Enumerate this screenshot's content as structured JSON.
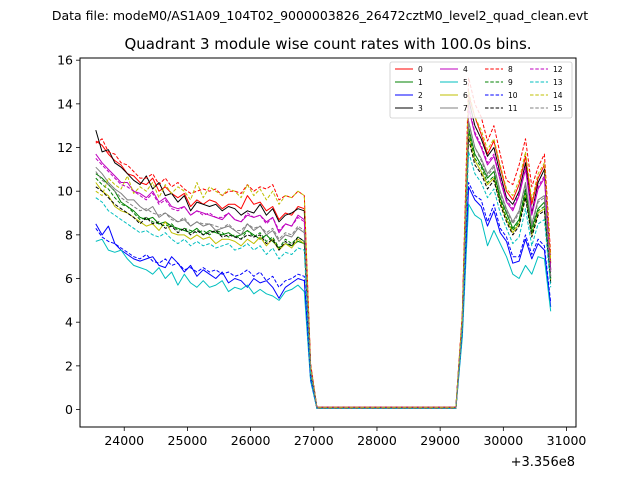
{
  "suptitle": "Data file: modeM0/AS1A09_104T02_9000003826_26472cztM0_level2_quad_clean.evt",
  "chart_data": {
    "type": "line",
    "title": "Quadrant 3 module wise count rates with 100.0s bins.",
    "xlabel": "",
    "ylabel": "",
    "x_offset_label": "+3.356e8",
    "xlim": [
      23300,
      31150
    ],
    "ylim": [
      -0.8,
      16.1
    ],
    "xticks": [
      24000,
      25000,
      26000,
      27000,
      28000,
      29000,
      30000,
      31000
    ],
    "yticks": [
      0,
      2,
      4,
      6,
      8,
      10,
      12,
      14,
      16
    ],
    "legend_position": "top-right",
    "note": "Values are approximate readings of a noisy plot; x values are offsets from 3.356e8 s.",
    "segment1_x": [
      23550,
      23650,
      23750,
      23850,
      23950,
      24050,
      24150,
      24250,
      24350,
      24450,
      24550,
      24650,
      24750,
      24850,
      24950,
      25050,
      25150,
      25250,
      25350,
      25450,
      25550,
      25650,
      25750,
      25850,
      25950,
      26050,
      26150,
      26250,
      26350,
      26450,
      26550,
      26650,
      26750,
      26850,
      26950,
      27050
    ],
    "gap_x": [
      27050,
      29250
    ],
    "segment2_x": [
      29250,
      29350,
      29450,
      29550,
      29650,
      29750,
      29850,
      29950,
      30050,
      30150,
      30250,
      30350,
      30450,
      30550,
      30650,
      30750
    ],
    "series": [
      {
        "name": "0",
        "color": "#ff0000",
        "style": "solid",
        "values1": [
          12.3,
          12.1,
          11.7,
          11.4,
          11.2,
          10.8,
          10.7,
          10.4,
          10.3,
          10.6,
          10.0,
          10.2,
          9.9,
          9.7,
          9.9,
          9.3,
          9.6,
          9.4,
          9.6,
          9.5,
          9.2,
          9.4,
          9.4,
          9.2,
          9.8,
          9.4,
          9.5,
          9.1,
          9.3,
          8.7,
          9.0,
          8.9,
          9.3,
          9.2,
          2.0,
          0.1
        ],
        "values2": [
          0.1,
          4.3,
          14.4,
          13.4,
          12.6,
          11.7,
          12.3,
          11.1,
          10.0,
          9.6,
          10.3,
          11.6,
          9.4,
          10.6,
          11.2,
          6.7
        ]
      },
      {
        "name": "1",
        "color": "#008000",
        "style": "solid",
        "values1": [
          10.8,
          10.6,
          10.3,
          10.0,
          9.5,
          9.3,
          9.1,
          8.8,
          8.7,
          8.8,
          8.5,
          8.6,
          8.4,
          8.3,
          8.2,
          8.1,
          8.3,
          8.0,
          8.2,
          8.1,
          8.0,
          8.1,
          7.9,
          8.0,
          8.2,
          8.0,
          7.8,
          8.0,
          7.7,
          7.4,
          7.6,
          7.5,
          7.7,
          7.6,
          1.8,
          0.05
        ],
        "values2": [
          0.05,
          4.0,
          12.9,
          11.7,
          11.2,
          10.6,
          10.9,
          9.7,
          9.0,
          8.3,
          8.7,
          10.1,
          8.3,
          9.2,
          9.5,
          6.0
        ]
      },
      {
        "name": "2",
        "color": "#0000ff",
        "style": "solid",
        "values1": [
          8.5,
          8.0,
          8.4,
          7.6,
          7.3,
          7.1,
          6.9,
          6.8,
          6.9,
          7.0,
          6.6,
          6.5,
          7.0,
          6.7,
          6.3,
          6.6,
          6.1,
          6.4,
          6.2,
          6.0,
          6.3,
          5.8,
          6.0,
          5.9,
          5.6,
          6.0,
          5.8,
          5.9,
          5.6,
          5.1,
          5.6,
          5.8,
          6.0,
          5.9,
          1.4,
          0.05
        ],
        "values2": [
          0.05,
          3.5,
          10.2,
          9.6,
          9.3,
          8.4,
          9.1,
          8.1,
          7.7,
          6.7,
          6.8,
          7.8,
          6.9,
          7.6,
          7.3,
          4.7
        ]
      },
      {
        "name": "3",
        "color": "#000000",
        "style": "solid",
        "values1": [
          12.8,
          11.8,
          11.9,
          11.3,
          11.1,
          10.8,
          10.5,
          10.3,
          10.7,
          10.1,
          10.4,
          9.8,
          9.9,
          9.5,
          9.8,
          9.1,
          9.5,
          9.4,
          9.3,
          9.4,
          9.1,
          9.3,
          9.2,
          8.9,
          9.1,
          9.0,
          9.4,
          8.9,
          9.2,
          8.6,
          8.9,
          9.0,
          9.2,
          9.1,
          2.0,
          0.1
        ],
        "values2": [
          0.1,
          4.2,
          14.2,
          13.0,
          12.4,
          11.6,
          12.0,
          10.8,
          9.7,
          9.4,
          10.0,
          11.3,
          9.0,
          10.4,
          11.0,
          6.4
        ]
      },
      {
        "name": "4",
        "color": "#bf00bf",
        "style": "solid",
        "values1": [
          11.7,
          11.3,
          11.0,
          10.7,
          10.4,
          10.4,
          10.0,
          9.9,
          9.7,
          10.0,
          9.5,
          9.7,
          9.3,
          9.2,
          9.3,
          8.9,
          9.1,
          9.0,
          8.9,
          8.8,
          8.7,
          9.0,
          8.7,
          8.6,
          8.9,
          8.8,
          8.9,
          8.6,
          8.8,
          8.1,
          8.5,
          8.4,
          8.9,
          8.7,
          1.9,
          0.1
        ],
        "values2": [
          0.1,
          4.1,
          13.8,
          12.6,
          12.0,
          11.2,
          11.6,
          10.5,
          9.5,
          9.1,
          9.8,
          11.0,
          8.9,
          10.1,
          10.6,
          6.3
        ]
      },
      {
        "name": "5",
        "color": "#00bfbf",
        "style": "solid",
        "values1": [
          7.7,
          7.8,
          7.3,
          7.2,
          7.3,
          6.9,
          6.6,
          6.5,
          6.4,
          6.2,
          6.5,
          6.0,
          6.3,
          5.7,
          6.2,
          5.8,
          5.6,
          5.9,
          5.6,
          5.7,
          5.9,
          5.4,
          5.6,
          5.5,
          5.7,
          5.3,
          5.5,
          5.3,
          5.2,
          5.0,
          5.4,
          5.5,
          5.7,
          5.4,
          1.3,
          0.05
        ],
        "values2": [
          0.05,
          3.3,
          9.4,
          8.9,
          8.7,
          7.5,
          8.2,
          7.6,
          7.0,
          6.2,
          6.0,
          6.6,
          6.2,
          7.0,
          6.9,
          4.5
        ]
      },
      {
        "name": "6",
        "color": "#bfbf00",
        "style": "solid",
        "values1": [
          10.4,
          10.0,
          9.8,
          9.3,
          9.1,
          9.0,
          8.8,
          8.6,
          8.4,
          8.5,
          8.2,
          8.6,
          8.1,
          8.0,
          8.0,
          7.8,
          8.0,
          7.8,
          7.9,
          7.6,
          7.8,
          7.8,
          7.7,
          7.5,
          7.8,
          7.6,
          7.9,
          7.5,
          7.8,
          7.3,
          7.6,
          7.4,
          7.8,
          7.6,
          1.7,
          0.05
        ],
        "values2": [
          0.05,
          3.9,
          12.6,
          11.4,
          10.9,
          10.3,
          10.6,
          9.5,
          8.7,
          8.1,
          8.5,
          9.8,
          8.0,
          9.0,
          9.2,
          5.9
        ]
      },
      {
        "name": "7",
        "color": "#808080",
        "style": "solid",
        "values1": [
          11.1,
          10.8,
          10.4,
          10.1,
          9.9,
          9.6,
          9.6,
          9.3,
          9.1,
          9.3,
          8.8,
          9.0,
          8.8,
          8.6,
          8.7,
          8.4,
          8.6,
          8.4,
          8.5,
          8.2,
          8.3,
          8.4,
          8.2,
          8.0,
          8.5,
          8.2,
          8.4,
          8.0,
          8.2,
          7.7,
          8.0,
          7.9,
          8.3,
          8.1,
          1.8,
          0.05
        ],
        "values2": [
          0.05,
          4.0,
          13.2,
          12.0,
          11.5,
          10.8,
          11.2,
          10.0,
          9.2,
          8.6,
          9.1,
          10.4,
          8.5,
          9.6,
          9.8,
          6.1
        ]
      },
      {
        "name": "8",
        "color": "#ff0000",
        "style": "dashed",
        "values1": [
          12.2,
          12.4,
          11.8,
          11.7,
          11.3,
          11.2,
          10.9,
          10.6,
          10.6,
          10.8,
          10.3,
          10.6,
          10.2,
          10.4,
          10.1,
          9.9,
          10.0,
          10.1,
          10.0,
          10.1,
          9.8,
          10.0,
          10.0,
          9.9,
          10.3,
          10.0,
          10.2,
          10.1,
          10.3,
          9.6,
          9.8,
          9.7,
          10.0,
          9.8,
          2.1,
          0.1
        ],
        "values2": [
          0.1,
          4.4,
          15.2,
          14.0,
          13.4,
          12.3,
          13.0,
          11.7,
          10.5,
          10.3,
          11.2,
          12.4,
          10.2,
          11.1,
          11.7,
          7.1
        ]
      },
      {
        "name": "9",
        "color": "#008000",
        "style": "dashed",
        "values1": [
          10.6,
          10.3,
          10.1,
          9.7,
          9.4,
          9.3,
          9.0,
          8.7,
          8.8,
          8.6,
          8.5,
          8.4,
          8.5,
          8.2,
          8.3,
          8.2,
          8.1,
          8.2,
          8.0,
          8.2,
          8.1,
          7.9,
          8.0,
          7.8,
          8.2,
          7.9,
          8.1,
          7.7,
          7.9,
          7.4,
          7.8,
          7.6,
          7.9,
          7.7,
          1.8,
          0.05
        ],
        "values2": [
          0.05,
          4.0,
          12.7,
          11.5,
          11.1,
          10.4,
          10.7,
          9.6,
          8.8,
          8.2,
          8.6,
          9.9,
          8.1,
          9.1,
          9.3,
          6.0
        ]
      },
      {
        "name": "10",
        "color": "#0000ff",
        "style": "dashed",
        "values1": [
          8.3,
          7.9,
          7.7,
          7.6,
          7.4,
          7.2,
          7.0,
          6.9,
          7.1,
          6.8,
          6.7,
          6.9,
          6.6,
          6.7,
          6.4,
          6.5,
          6.3,
          6.5,
          6.3,
          6.4,
          6.2,
          6.3,
          6.1,
          6.2,
          6.4,
          6.1,
          6.3,
          5.9,
          6.1,
          5.6,
          5.9,
          6.0,
          6.2,
          6.1,
          1.4,
          0.05
        ],
        "values2": [
          0.05,
          3.6,
          10.4,
          9.8,
          9.6,
          8.6,
          9.4,
          8.3,
          7.9,
          7.0,
          7.0,
          8.0,
          7.1,
          7.8,
          7.5,
          4.9
        ]
      },
      {
        "name": "11",
        "color": "#000000",
        "style": "dashed",
        "values1": [
          10.2,
          10.0,
          9.7,
          9.4,
          9.2,
          9.0,
          8.8,
          8.5,
          8.8,
          8.5,
          8.6,
          8.3,
          8.4,
          8.1,
          8.3,
          8.0,
          8.2,
          8.0,
          8.1,
          8.2,
          7.9,
          8.0,
          7.9,
          7.8,
          8.0,
          7.9,
          8.0,
          7.6,
          7.8,
          7.3,
          7.7,
          7.5,
          7.9,
          7.7,
          1.7,
          0.05
        ],
        "values2": [
          0.05,
          3.9,
          12.4,
          11.2,
          10.8,
          10.1,
          10.5,
          9.4,
          8.6,
          8.0,
          8.4,
          9.7,
          7.9,
          8.9,
          9.1,
          5.8
        ]
      },
      {
        "name": "12",
        "color": "#bf00bf",
        "style": "dashed",
        "values1": [
          11.5,
          11.2,
          10.9,
          10.6,
          10.3,
          10.2,
          10.0,
          9.8,
          9.6,
          9.9,
          9.4,
          9.6,
          9.2,
          9.1,
          9.3,
          8.9,
          9.1,
          8.9,
          9.0,
          8.8,
          8.8,
          9.0,
          8.7,
          8.6,
          9.0,
          8.8,
          8.9,
          8.5,
          8.8,
          8.2,
          8.5,
          8.4,
          8.8,
          8.6,
          1.9,
          0.1
        ],
        "values2": [
          0.1,
          4.1,
          13.9,
          12.7,
          12.1,
          11.3,
          11.7,
          10.6,
          9.6,
          9.2,
          9.9,
          11.1,
          9.0,
          10.2,
          10.7,
          6.4
        ]
      },
      {
        "name": "13",
        "color": "#00bfbf",
        "style": "dashed",
        "values1": [
          9.7,
          9.5,
          9.1,
          8.9,
          8.7,
          8.5,
          8.3,
          8.1,
          8.2,
          8.0,
          7.9,
          8.1,
          7.8,
          7.6,
          7.8,
          7.5,
          7.7,
          7.5,
          7.6,
          7.4,
          7.5,
          7.6,
          7.3,
          7.4,
          7.6,
          7.3,
          7.5,
          7.1,
          7.4,
          6.9,
          7.2,
          7.1,
          7.4,
          7.3,
          1.6,
          0.05
        ],
        "values2": [
          0.05,
          3.8,
          11.8,
          10.8,
          10.4,
          9.7,
          10.1,
          9.0,
          8.3,
          7.6,
          7.9,
          9.2,
          7.5,
          8.5,
          8.7,
          5.6
        ]
      },
      {
        "name": "14",
        "color": "#bfbf00",
        "style": "dashed",
        "values1": [
          10.0,
          9.8,
          10.6,
          10.3,
          10.1,
          10.7,
          9.9,
          10.2,
          10.0,
          10.4,
          9.7,
          10.3,
          9.9,
          10.2,
          10.0,
          9.6,
          10.4,
          9.7,
          10.2,
          10.0,
          9.8,
          10.1,
          10.0,
          9.7,
          10.3,
          9.8,
          10.1,
          9.6,
          10.0,
          9.4,
          9.8,
          9.7,
          10.0,
          9.8,
          2.0,
          0.1
        ],
        "values2": [
          0.1,
          4.3,
          14.6,
          13.4,
          12.8,
          11.9,
          12.4,
          11.2,
          10.1,
          9.8,
          10.5,
          11.8,
          9.6,
          10.8,
          11.3,
          6.8
        ]
      },
      {
        "name": "15",
        "color": "#808080",
        "style": "dashed",
        "values1": [
          10.9,
          10.5,
          10.3,
          10.0,
          9.7,
          9.5,
          9.3,
          9.1,
          9.2,
          9.0,
          8.9,
          9.0,
          8.7,
          8.6,
          8.8,
          8.4,
          8.6,
          8.5,
          8.5,
          8.4,
          8.3,
          8.5,
          8.2,
          8.2,
          8.5,
          8.3,
          8.4,
          8.1,
          8.3,
          7.8,
          8.1,
          8.0,
          8.4,
          8.2,
          1.8,
          0.05
        ],
        "values2": [
          0.05,
          4.0,
          13.1,
          12.0,
          11.4,
          10.7,
          11.1,
          9.9,
          9.1,
          8.5,
          9.0,
          10.3,
          8.4,
          9.5,
          9.7,
          6.1
        ]
      }
    ]
  }
}
